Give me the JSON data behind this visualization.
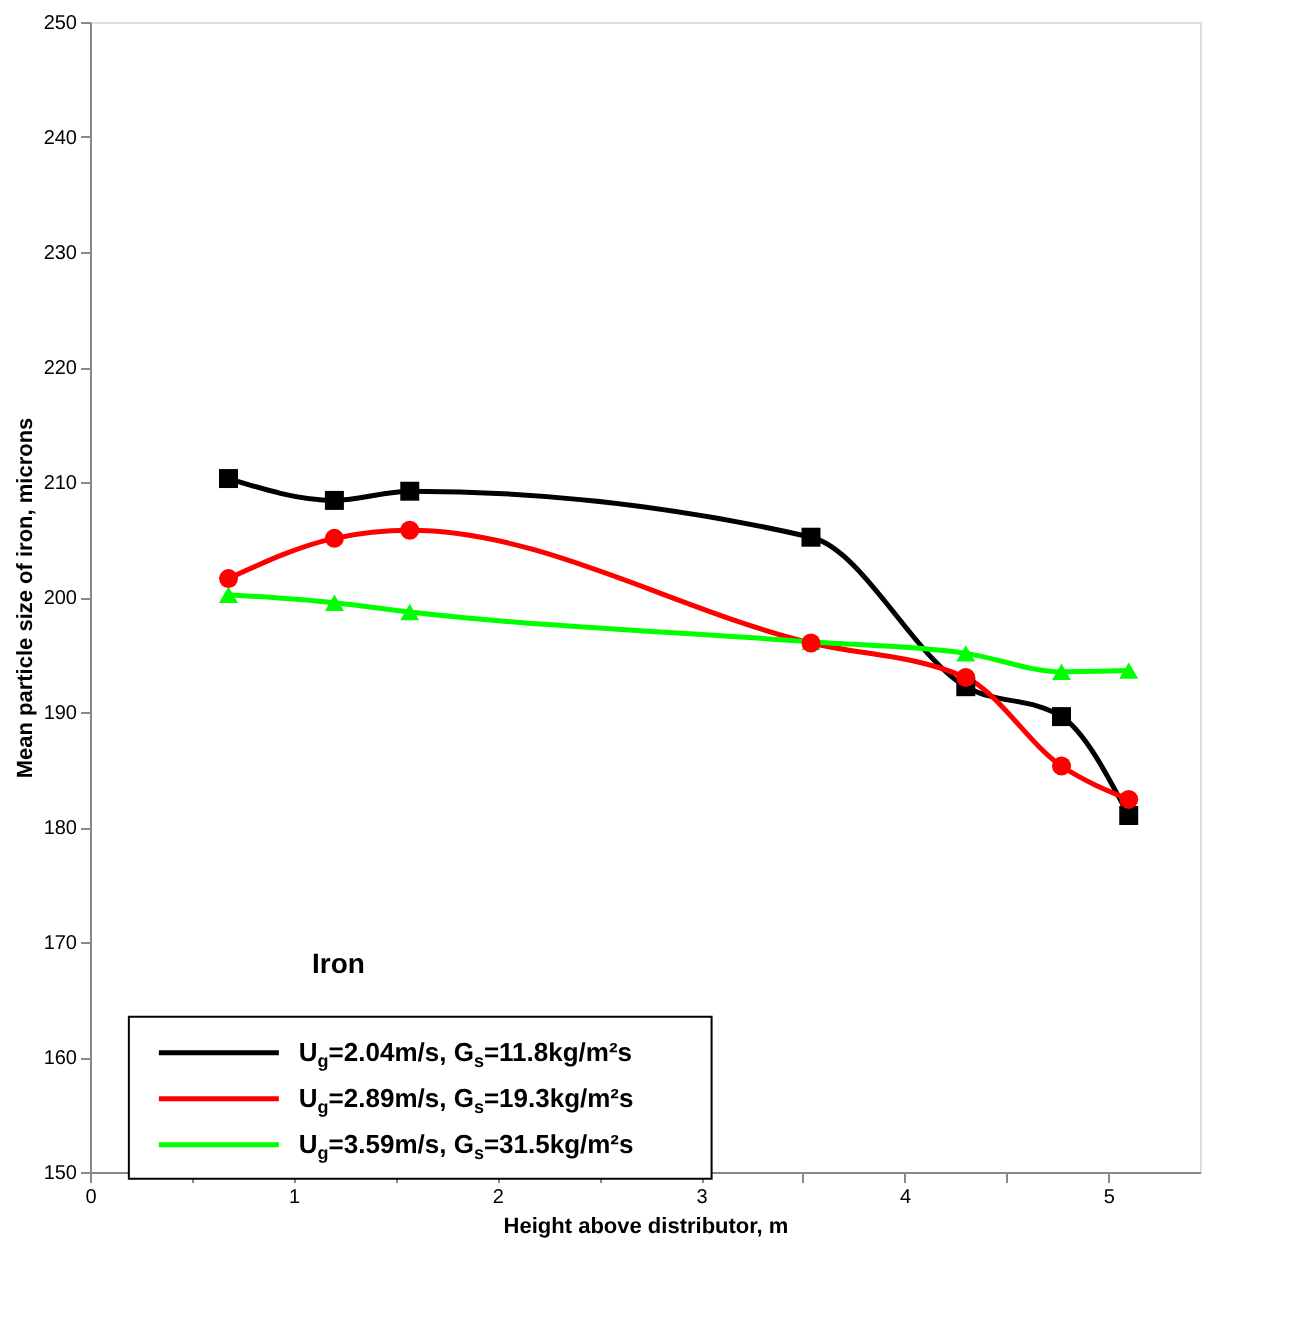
{
  "chart_data": {
    "type": "line",
    "xlabel": "Height above distributor, m",
    "ylabel": "Mean particle size of iron, microns",
    "x": [
      0.68,
      1.2,
      1.57,
      3.54,
      4.3,
      4.77,
      5.1
    ],
    "series": [
      {
        "name": "U$_{g}$=2.04m/s, G$_{s}$=11.8kg/m²s",
        "color": "#000000",
        "marker": "square",
        "values": [
          210.3,
          208.4,
          209.2,
          205.2,
          192.2,
          189.6,
          181.0
        ]
      },
      {
        "name": "U$_{g}$=2.89m/s, G$_{s}$=19.3kg/m²s",
        "color": "#ff0000",
        "marker": "circle",
        "values": [
          201.6,
          205.1,
          205.8,
          196.0,
          193.0,
          185.3,
          182.4
        ]
      },
      {
        "name": "U$_{g}$=3.59m/s, G$_{s}$=31.5kg/m²s",
        "color": "#00ff00",
        "marker": "triangle",
        "values": [
          200.2,
          199.5,
          198.7,
          196.1,
          195.1,
          193.5,
          193.6
        ]
      }
    ],
    "annotations": [
      "Iron"
    ],
    "xlim": [
      0,
      5.45
    ],
    "ylim": [
      150,
      250
    ],
    "xticks": [
      0,
      {
        "value": 0.5,
        "label": null
      },
      1,
      {
        "value": 1.5,
        "label": null
      },
      2,
      {
        "value": 2.5,
        "label": null
      },
      3,
      {
        "value": 3.5,
        "label": null
      },
      4,
      {
        "value": 4.5,
        "label": null
      },
      5
    ],
    "yticks": [
      150,
      160,
      170,
      180,
      190,
      200,
      210,
      220,
      230,
      240,
      250
    ],
    "grid": false,
    "legend": "bottom left",
    "line_style": "solid"
  }
}
